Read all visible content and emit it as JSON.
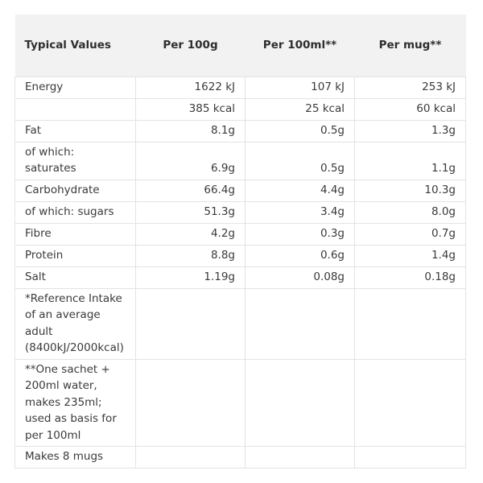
{
  "header": {
    "col0": "Typical Values",
    "col1": "Per 100g",
    "col2": "Per 100ml**",
    "col3": "Per mug**"
  },
  "rows": [
    {
      "label": "Energy",
      "v1": "1622 kJ",
      "v2": "107 kJ",
      "v3": "253 kJ"
    },
    {
      "label": "",
      "v1": "385 kcal",
      "v2": "25 kcal",
      "v3": "60 kcal"
    },
    {
      "label": "Fat",
      "v1": "8.1g",
      "v2": "0.5g",
      "v3": "1.3g"
    },
    {
      "label": "of which: saturates",
      "v1": "6.9g",
      "v2": "0.5g",
      "v3": "1.1g"
    },
    {
      "label": "Carbohydrate",
      "v1": "66.4g",
      "v2": "4.4g",
      "v3": "10.3g"
    },
    {
      "label": "of which: sugars",
      "v1": "51.3g",
      "v2": "3.4g",
      "v3": "8.0g"
    },
    {
      "label": "Fibre",
      "v1": "4.2g",
      "v2": "0.3g",
      "v3": "0.7g"
    },
    {
      "label": "Protein",
      "v1": "8.8g",
      "v2": "0.6g",
      "v3": "1.4g"
    },
    {
      "label": "Salt",
      "v1": "1.19g",
      "v2": "0.08g",
      "v3": "0.18g"
    },
    {
      "label": "*Reference Intake of an average adult (8400kJ/2000kcal)",
      "v1": "",
      "v2": "",
      "v3": ""
    },
    {
      "label": "**One sachet + 200ml water, makes 235ml; used as basis for per 100ml",
      "v1": "",
      "v2": "",
      "v3": ""
    },
    {
      "label": "Makes 8 mugs",
      "v1": "",
      "v2": "",
      "v3": ""
    }
  ]
}
